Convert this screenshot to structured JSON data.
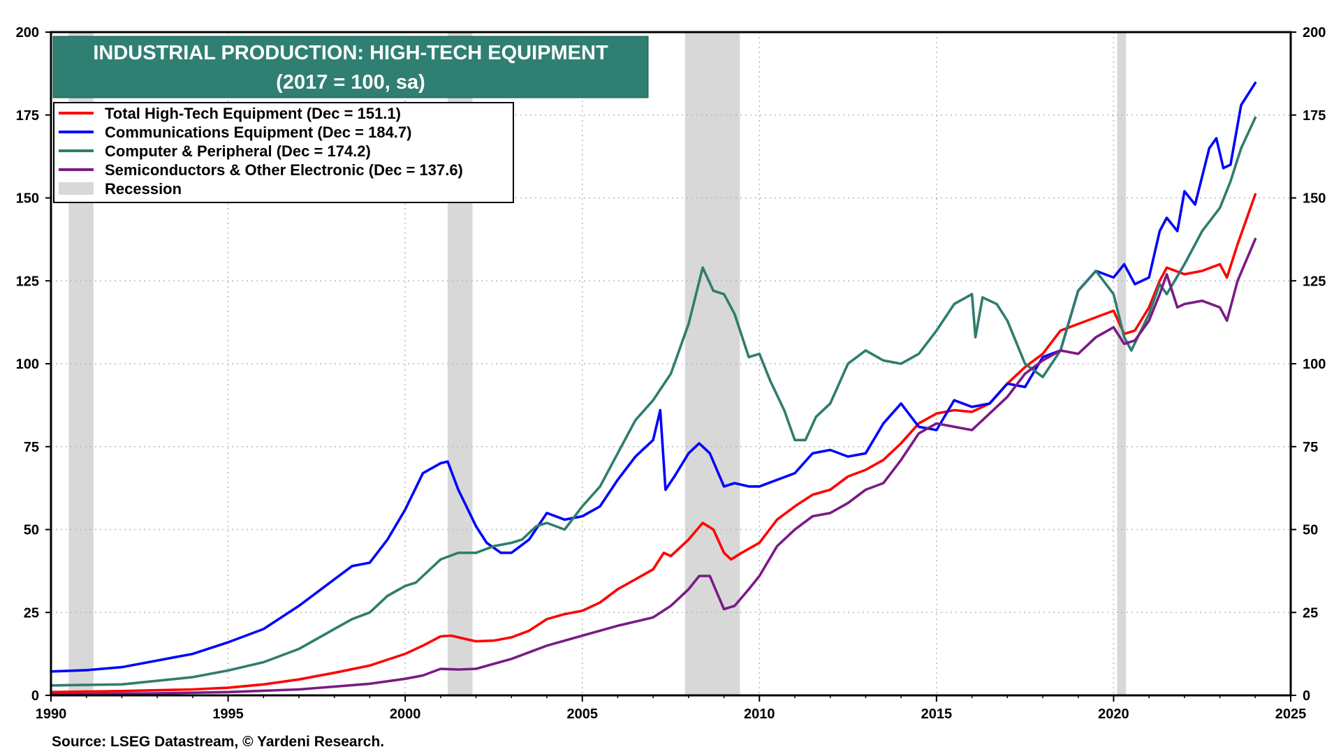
{
  "chart_data": {
    "type": "line",
    "title": "INDUSTRIAL PRODUCTION: HIGH-TECH EQUIPMENT",
    "subtitle": "(2017 = 100, sa)",
    "source": "Source: LSEG Datastream, © Yardeni Research.",
    "xlim": [
      1990,
      2025
    ],
    "ylim": [
      0,
      200
    ],
    "x_ticks": [
      1990,
      1995,
      2000,
      2005,
      2010,
      2015,
      2020,
      2025
    ],
    "y_ticks": [
      0,
      25,
      50,
      75,
      100,
      125,
      150,
      175,
      200
    ],
    "x_tick_labels": [
      "1990",
      "1995",
      "2000",
      "2005",
      "2010",
      "2015",
      "2020",
      "2025"
    ],
    "y_tick_labels": [
      "0",
      "25",
      "50",
      "75",
      "100",
      "125",
      "150",
      "175",
      "200"
    ],
    "grid": true,
    "legend_position": "top-left",
    "recessions": [
      [
        1990.5,
        1991.2
      ],
      [
        2001.2,
        2001.9
      ],
      [
        2007.9,
        2009.45
      ],
      [
        2020.1,
        2020.35
      ]
    ],
    "recession_label": "Recession",
    "recession_color": "#d8d8d8",
    "series": [
      {
        "name": "Total High-Tech Equipment (Dec = 151.1)",
        "color": "#ff0000",
        "points": [
          [
            1990,
            1
          ],
          [
            1992,
            1.3
          ],
          [
            1994,
            1.8
          ],
          [
            1995,
            2.3
          ],
          [
            1996,
            3.3
          ],
          [
            1997,
            4.8
          ],
          [
            1998,
            6.8
          ],
          [
            1999,
            9
          ],
          [
            2000,
            12.5
          ],
          [
            2000.5,
            15
          ],
          [
            2001,
            17.8
          ],
          [
            2001.3,
            18
          ],
          [
            2001.7,
            17
          ],
          [
            2002,
            16.3
          ],
          [
            2002.5,
            16.5
          ],
          [
            2003,
            17.5
          ],
          [
            2003.5,
            19.5
          ],
          [
            2004,
            23
          ],
          [
            2004.5,
            24.5
          ],
          [
            2005,
            25.5
          ],
          [
            2005.5,
            28
          ],
          [
            2006,
            32
          ],
          [
            2006.5,
            35
          ],
          [
            2007,
            38
          ],
          [
            2007.3,
            43
          ],
          [
            2007.5,
            42
          ],
          [
            2008,
            47
          ],
          [
            2008.4,
            52
          ],
          [
            2008.7,
            50
          ],
          [
            2009,
            43
          ],
          [
            2009.2,
            41
          ],
          [
            2009.5,
            43
          ],
          [
            2010,
            46
          ],
          [
            2010.5,
            53
          ],
          [
            2011,
            57
          ],
          [
            2011.5,
            60.5
          ],
          [
            2012,
            62
          ],
          [
            2012.5,
            66
          ],
          [
            2013,
            68
          ],
          [
            2013.5,
            71
          ],
          [
            2014,
            76
          ],
          [
            2014.5,
            82
          ],
          [
            2015,
            85
          ],
          [
            2015.5,
            86
          ],
          [
            2016,
            85.5
          ],
          [
            2016.5,
            88
          ],
          [
            2017,
            94
          ],
          [
            2017.5,
            99
          ],
          [
            2018,
            103
          ],
          [
            2018.5,
            110
          ],
          [
            2019,
            112
          ],
          [
            2019.5,
            114
          ],
          [
            2020,
            116
          ],
          [
            2020.3,
            109
          ],
          [
            2020.6,
            110
          ],
          [
            2021,
            117
          ],
          [
            2021.3,
            125
          ],
          [
            2021.5,
            129
          ],
          [
            2022,
            127
          ],
          [
            2022.5,
            128
          ],
          [
            2023,
            130
          ],
          [
            2023.2,
            126
          ],
          [
            2023.5,
            136
          ],
          [
            2024,
            151.1
          ]
        ]
      },
      {
        "name": "Communications Equipment (Dec = 184.7)",
        "color": "#0000ff",
        "points": [
          [
            1990,
            7.2
          ],
          [
            1991,
            7.6
          ],
          [
            1992,
            8.5
          ],
          [
            1993,
            10.5
          ],
          [
            1994,
            12.5
          ],
          [
            1995,
            16
          ],
          [
            1996,
            20
          ],
          [
            1997,
            27
          ],
          [
            1998,
            35
          ],
          [
            1998.5,
            39
          ],
          [
            1999,
            40
          ],
          [
            1999.5,
            47
          ],
          [
            2000,
            56
          ],
          [
            2000.5,
            67
          ],
          [
            2001,
            70
          ],
          [
            2001.2,
            70.5
          ],
          [
            2001.5,
            62
          ],
          [
            2002,
            51
          ],
          [
            2002.3,
            46
          ],
          [
            2002.7,
            43
          ],
          [
            2003,
            43
          ],
          [
            2003.5,
            47
          ],
          [
            2004,
            55
          ],
          [
            2004.5,
            53
          ],
          [
            2005,
            54
          ],
          [
            2005.5,
            57
          ],
          [
            2006,
            65
          ],
          [
            2006.5,
            72
          ],
          [
            2007,
            77
          ],
          [
            2007.2,
            86
          ],
          [
            2007.35,
            62
          ],
          [
            2007.6,
            66
          ],
          [
            2008,
            73
          ],
          [
            2008.3,
            76
          ],
          [
            2008.6,
            73
          ],
          [
            2009,
            63
          ],
          [
            2009.3,
            64
          ],
          [
            2009.7,
            63
          ],
          [
            2010,
            63
          ],
          [
            2010.5,
            65
          ],
          [
            2011,
            67
          ],
          [
            2011.5,
            73
          ],
          [
            2012,
            74
          ],
          [
            2012.5,
            72
          ],
          [
            2013,
            73
          ],
          [
            2013.5,
            82
          ],
          [
            2014,
            88
          ],
          [
            2014.5,
            81
          ],
          [
            2015,
            80
          ],
          [
            2015.5,
            89
          ],
          [
            2016,
            87
          ],
          [
            2016.5,
            88
          ],
          [
            2017,
            94
          ],
          [
            2017.5,
            93
          ],
          [
            2018,
            102
          ],
          [
            2018.5,
            104
          ],
          [
            2019,
            122
          ],
          [
            2019.5,
            128
          ],
          [
            2020,
            126
          ],
          [
            2020.3,
            130
          ],
          [
            2020.6,
            124
          ],
          [
            2021,
            126
          ],
          [
            2021.3,
            140
          ],
          [
            2021.5,
            144
          ],
          [
            2021.8,
            140
          ],
          [
            2022,
            152
          ],
          [
            2022.3,
            148
          ],
          [
            2022.7,
            165
          ],
          [
            2022.9,
            168
          ],
          [
            2023.1,
            159
          ],
          [
            2023.3,
            160
          ],
          [
            2023.6,
            178
          ],
          [
            2024,
            184.7
          ]
        ]
      },
      {
        "name": "Computer & Peripheral (Dec = 174.2)",
        "color": "#2e7d6e",
        "points": [
          [
            1990,
            3
          ],
          [
            1992,
            3.3
          ],
          [
            1994,
            5.5
          ],
          [
            1995,
            7.5
          ],
          [
            1996,
            10
          ],
          [
            1997,
            14
          ],
          [
            1998,
            20
          ],
          [
            1998.5,
            23
          ],
          [
            1999,
            25
          ],
          [
            1999.5,
            30
          ],
          [
            2000,
            33
          ],
          [
            2000.3,
            34
          ],
          [
            2000.7,
            38
          ],
          [
            2001,
            41
          ],
          [
            2001.5,
            43
          ],
          [
            2002,
            43
          ],
          [
            2002.5,
            45
          ],
          [
            2003,
            46
          ],
          [
            2003.3,
            47
          ],
          [
            2003.7,
            51
          ],
          [
            2004,
            52
          ],
          [
            2004.5,
            50
          ],
          [
            2005,
            57
          ],
          [
            2005.5,
            63
          ],
          [
            2006,
            73
          ],
          [
            2006.5,
            83
          ],
          [
            2007,
            89
          ],
          [
            2007.5,
            97
          ],
          [
            2008,
            112
          ],
          [
            2008.4,
            129
          ],
          [
            2008.7,
            122
          ],
          [
            2009,
            121
          ],
          [
            2009.3,
            115
          ],
          [
            2009.7,
            102
          ],
          [
            2010,
            103
          ],
          [
            2010.3,
            95
          ],
          [
            2010.7,
            86
          ],
          [
            2011,
            77
          ],
          [
            2011.3,
            77
          ],
          [
            2011.6,
            84
          ],
          [
            2012,
            88
          ],
          [
            2012.5,
            100
          ],
          [
            2013,
            104
          ],
          [
            2013.5,
            101
          ],
          [
            2014,
            100
          ],
          [
            2014.5,
            103
          ],
          [
            2015,
            110
          ],
          [
            2015.5,
            118
          ],
          [
            2016,
            121
          ],
          [
            2016.1,
            108
          ],
          [
            2016.3,
            120
          ],
          [
            2016.7,
            118
          ],
          [
            2017,
            113
          ],
          [
            2017.5,
            100
          ],
          [
            2018,
            96
          ],
          [
            2018.5,
            104
          ],
          [
            2019,
            122
          ],
          [
            2019.5,
            128
          ],
          [
            2020,
            121
          ],
          [
            2020.3,
            108
          ],
          [
            2020.5,
            104
          ],
          [
            2021,
            115
          ],
          [
            2021.3,
            124
          ],
          [
            2021.5,
            121
          ],
          [
            2022,
            130
          ],
          [
            2022.5,
            140
          ],
          [
            2023,
            147
          ],
          [
            2023.3,
            155
          ],
          [
            2023.6,
            165
          ],
          [
            2024,
            174.2
          ]
        ]
      },
      {
        "name": "Semiconductors & Other Electronic (Dec = 137.6)",
        "color": "#7a1a85",
        "points": [
          [
            1990,
            0.3
          ],
          [
            1993,
            0.6
          ],
          [
            1995,
            1
          ],
          [
            1997,
            1.8
          ],
          [
            1999,
            3.5
          ],
          [
            2000,
            5
          ],
          [
            2000.5,
            6
          ],
          [
            2001,
            8
          ],
          [
            2001.5,
            7.8
          ],
          [
            2002,
            8
          ],
          [
            2002.5,
            9.5
          ],
          [
            2003,
            11
          ],
          [
            2004,
            15
          ],
          [
            2005,
            18
          ],
          [
            2006,
            21
          ],
          [
            2007,
            23.5
          ],
          [
            2007.5,
            27
          ],
          [
            2008,
            32
          ],
          [
            2008.3,
            36
          ],
          [
            2008.6,
            36
          ],
          [
            2008.8,
            31
          ],
          [
            2009,
            26
          ],
          [
            2009.3,
            27
          ],
          [
            2009.7,
            32
          ],
          [
            2010,
            36
          ],
          [
            2010.5,
            45
          ],
          [
            2011,
            50
          ],
          [
            2011.5,
            54
          ],
          [
            2012,
            55
          ],
          [
            2012.5,
            58
          ],
          [
            2013,
            62
          ],
          [
            2013.5,
            64
          ],
          [
            2014,
            71
          ],
          [
            2014.5,
            79
          ],
          [
            2015,
            82
          ],
          [
            2015.5,
            81
          ],
          [
            2016,
            80
          ],
          [
            2016.5,
            85
          ],
          [
            2017,
            90
          ],
          [
            2017.5,
            97
          ],
          [
            2018,
            101
          ],
          [
            2018.5,
            104
          ],
          [
            2019,
            103
          ],
          [
            2019.5,
            108
          ],
          [
            2020,
            111
          ],
          [
            2020.3,
            106
          ],
          [
            2020.6,
            107
          ],
          [
            2021,
            113
          ],
          [
            2021.3,
            121
          ],
          [
            2021.5,
            127
          ],
          [
            2021.8,
            117
          ],
          [
            2022,
            118
          ],
          [
            2022.5,
            119
          ],
          [
            2023,
            117
          ],
          [
            2023.2,
            113
          ],
          [
            2023.5,
            125
          ],
          [
            2024,
            137.6
          ]
        ]
      }
    ]
  }
}
